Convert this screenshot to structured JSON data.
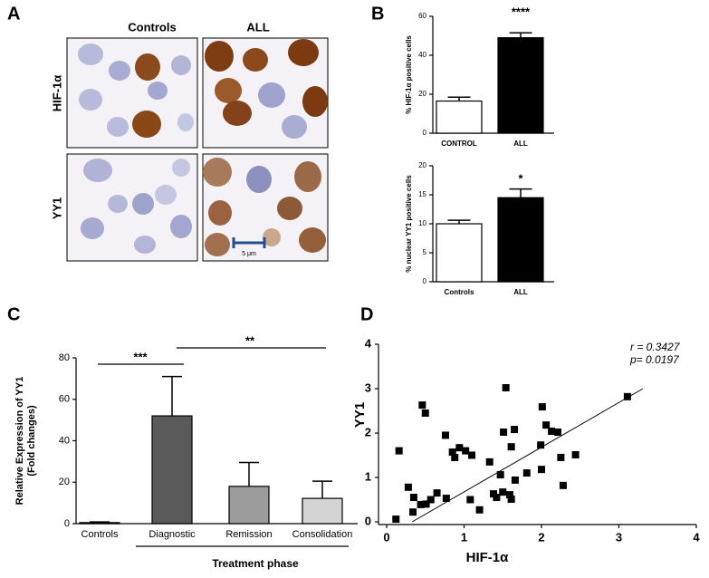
{
  "panels": [
    "A",
    "B",
    "C",
    "D"
  ],
  "micrographs": {
    "columns": [
      "Controls",
      "ALL"
    ],
    "rows": [
      "HIF-1α",
      "YY1"
    ],
    "scale_bar": "5 μm"
  },
  "chart_data": [
    {
      "type": "bar",
      "categories": [
        "CONTROL",
        "ALL"
      ],
      "values": [
        16.5,
        49
      ],
      "errors": [
        2,
        2.5
      ],
      "colors": [
        "#ffffff",
        "#000000"
      ],
      "ylim": [
        0,
        60
      ],
      "yticks": [
        0,
        20,
        40,
        60
      ],
      "ylabel": "% HIF-1α positive cells",
      "annotations": [
        "****"
      ]
    },
    {
      "type": "bar",
      "categories": [
        "Controls",
        "ALL"
      ],
      "values": [
        10,
        14.5
      ],
      "errors": [
        0.6,
        1.5
      ],
      "colors": [
        "#ffffff",
        "#000000"
      ],
      "ylim": [
        0,
        20
      ],
      "yticks": [
        0,
        5,
        10,
        15,
        20
      ],
      "ylabel": "% nuclear YY1 positive cells",
      "annotations": [
        "*"
      ]
    },
    {
      "type": "bar",
      "categories": [
        "Controls",
        "Diagnostic",
        "Remission",
        "Consolidation"
      ],
      "values": [
        0.5,
        52,
        18,
        12.2
      ],
      "errors": [
        0.3,
        19,
        11.5,
        8.3
      ],
      "colors": [
        "#ffffff",
        "#5a5a5a",
        "#9c9c9c",
        "#d4d4d4"
      ],
      "ylim": [
        0,
        80
      ],
      "yticks": [
        0,
        20,
        40,
        60,
        80
      ],
      "ylabel": [
        "Relative Expression of YY1",
        "(Fold changes)"
      ],
      "xlabel": "Treatment phase",
      "annotations": [
        "***",
        "**"
      ]
    },
    {
      "type": "scatter",
      "xlabel": "HIF-1α",
      "ylabel": "YY1",
      "color": "#000000",
      "x": [
        0.12,
        0.16,
        0.28,
        0.34,
        0.35,
        0.44,
        0.46,
        0.5,
        0.51,
        0.57,
        0.65,
        0.76,
        0.77,
        0.85,
        0.88,
        0.94,
        1.02,
        1.1,
        1.08,
        1.2,
        1.33,
        1.38,
        1.42,
        1.47,
        1.5,
        1.51,
        1.54,
        1.59,
        1.61,
        1.61,
        1.65,
        1.66,
        1.81,
        1.99,
        2.0,
        2.01,
        2.06,
        2.13,
        2.21,
        2.25,
        2.28,
        2.44,
        3.11
      ],
      "y": [
        0.06,
        1.6,
        0.78,
        0.22,
        0.55,
        0.39,
        2.63,
        2.45,
        0.4,
        0.5,
        0.65,
        1.95,
        0.53,
        1.57,
        1.45,
        1.67,
        1.6,
        1.5,
        0.5,
        0.27,
        1.35,
        0.63,
        0.55,
        1.06,
        0.67,
        2.02,
        3.02,
        0.61,
        1.69,
        0.51,
        2.08,
        0.94,
        1.1,
        1.73,
        1.18,
        2.59,
        2.18,
        2.04,
        2.02,
        1.45,
        0.82,
        1.51,
        2.82
      ],
      "fit": {
        "x": [
          0.33,
          3.31
        ],
        "y": [
          0,
          3.0
        ]
      },
      "xlim": [
        0,
        4
      ],
      "ylim": [
        0,
        4
      ],
      "xticks": [
        0,
        1,
        2,
        3,
        4
      ],
      "yticks": [
        0,
        1,
        2,
        3,
        4
      ],
      "annotations": [
        "r = 0.3427",
        "p= 0.0197"
      ]
    }
  ]
}
